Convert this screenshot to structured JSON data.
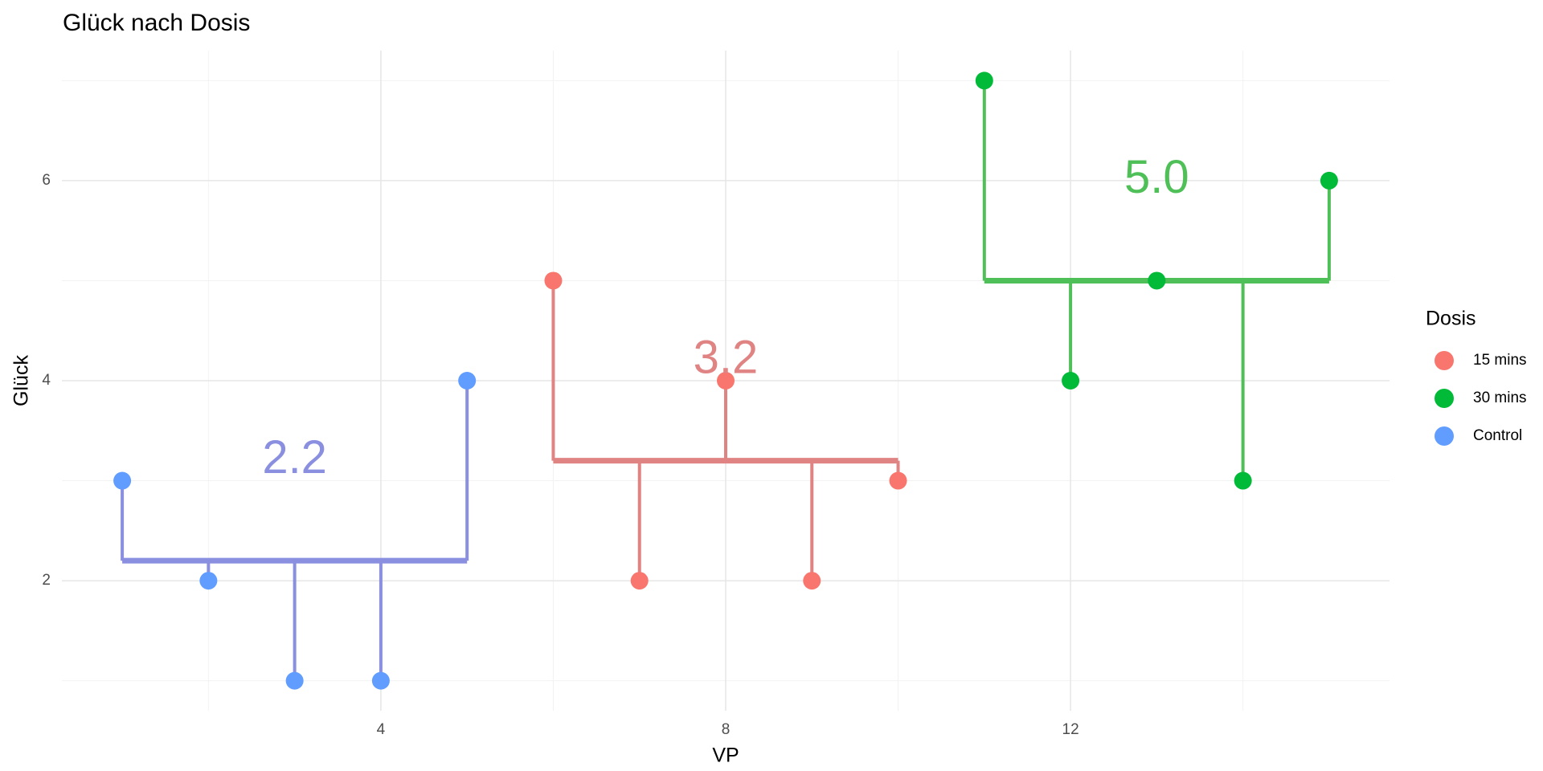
{
  "chart_data": {
    "type": "lollipop-mean",
    "title": "Glück nach Dosis",
    "x_label": "VP",
    "y_label": "Glück",
    "legend_title": "Dosis",
    "legend_position": "right",
    "xlim": [
      0.3,
      15.7
    ],
    "ylim": [
      0.7,
      7.3
    ],
    "xticks": [
      4,
      8,
      12
    ],
    "yticks": [
      2,
      4,
      6
    ],
    "xminor": [
      2,
      6,
      10,
      14
    ],
    "yminor": [
      1,
      3,
      5,
      7
    ],
    "grid": true,
    "series": [
      {
        "name": "15 mins",
        "color": "#F8766D",
        "line_color": "#E08383",
        "x": [
          6,
          7,
          8,
          9,
          10
        ],
        "values": [
          5,
          2,
          4,
          2,
          3
        ],
        "mean": 3.2
      },
      {
        "name": "30 mins",
        "color": "#00BA38",
        "line_color": "#4FBF57",
        "x": [
          11,
          12,
          13,
          14,
          15
        ],
        "values": [
          7,
          4,
          5,
          3,
          6
        ],
        "mean": {
          "value": 5,
          "label": "5.0"
        }
      },
      {
        "name": "Control",
        "color": "#619CFF",
        "line_color": "#8A8FE0",
        "x": [
          1,
          2,
          3,
          4,
          5
        ],
        "values": [
          3,
          2,
          1,
          1,
          4
        ],
        "mean": 2.2
      }
    ]
  }
}
